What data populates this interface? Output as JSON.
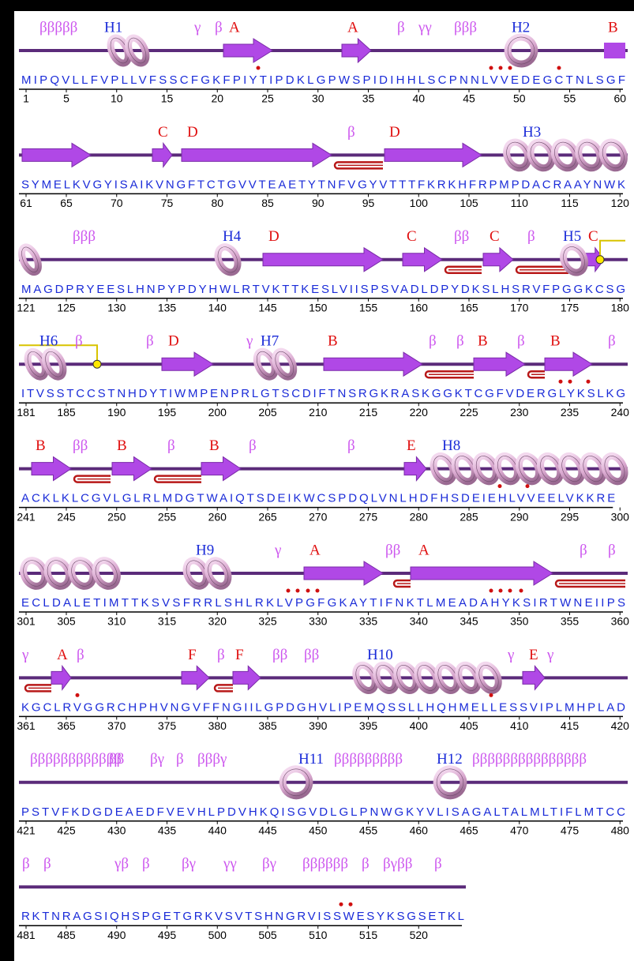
{
  "rows": [
    {
      "labels": [
        "βββββ",
        "H1",
        "γ",
        "β",
        "A",
        "A",
        "β",
        "γγ",
        "βββ",
        "H2",
        "B"
      ],
      "sequence": "MIPQVLLFVPLLVFSSCFGKFPIYTIPDKLGPWSPIDIHHLSCPNNLVVEDEGCTNLSGF",
      "ticks": [
        1,
        5,
        10,
        15,
        20,
        25,
        30,
        35,
        40,
        45,
        50,
        55,
        60
      ]
    },
    {
      "labels": [
        "C",
        "D",
        "β",
        "D",
        "H3"
      ],
      "sequence": "SYMELKVGYISAIKVNGFTCTGVVTEAETYTNFVGYVTTTFKRKHFRPMPDACRAAYNWK",
      "ticks": [
        61,
        65,
        70,
        75,
        80,
        85,
        90,
        95,
        100,
        105,
        110,
        115,
        120
      ]
    },
    {
      "labels": [
        "βββ",
        "H4",
        "D",
        "C",
        "ββ",
        "C",
        "β",
        "H5",
        "C"
      ],
      "sequence": "MAGDPRYEESLHNPYPDYHWLRTVKTTKESLVIISPSVADLDPYDKSLHSRVFPGGKCSG",
      "ticks": [
        121,
        125,
        130,
        135,
        140,
        145,
        150,
        155,
        160,
        165,
        170,
        175,
        180
      ]
    },
    {
      "labels": [
        "H6",
        "β",
        "β",
        "D",
        "γ",
        "H7",
        "B",
        "β",
        "β",
        "B",
        "β",
        "B",
        "β"
      ],
      "sequence": "ITVSSTCCSTNHDYTIWMPENPRLGTSCDIFTNSRGKRASKGGKTCGFVDERGLYKSLKG",
      "ticks": [
        181,
        185,
        190,
        195,
        200,
        205,
        210,
        215,
        220,
        225,
        230,
        235,
        240
      ]
    },
    {
      "labels": [
        "B",
        "ββ",
        "B",
        "β",
        "B",
        "β",
        "β",
        "E",
        "H8"
      ],
      "sequence": "ACKLKLCGVLGLRLMDGTWAIQTSDEIKWCSPDQLVNLHDFHSDEIEHLVVEELVKKRE",
      "ticks": [
        241,
        245,
        250,
        255,
        260,
        265,
        270,
        275,
        280,
        285,
        290,
        295,
        300
      ]
    },
    {
      "labels": [
        "H9",
        "γ",
        "A",
        "ββ",
        "A",
        "β",
        "β"
      ],
      "sequence": "ECLDALETIMTTKSVSFRRLSHLRKLVPGFGKAYTIFNKTLMEADAHYKSIRTWNEIIPS",
      "ticks": [
        301,
        305,
        310,
        315,
        320,
        325,
        330,
        335,
        340,
        345,
        350,
        355,
        360
      ]
    },
    {
      "labels": [
        "γ",
        "A",
        "β",
        "F",
        "β",
        "F",
        "ββ",
        "ββ",
        "H10",
        "γ",
        "E",
        "γ"
      ],
      "sequence": "KGCLRVGGRCHPHVNGVFFNGIILGPDGHVLIPEMQSSLLHQHMELLESSVIPLMHPLAD",
      "ticks": [
        361,
        365,
        370,
        375,
        380,
        385,
        390,
        395,
        400,
        405,
        410,
        415,
        420
      ]
    },
    {
      "labels": [
        "ββββββββββββ",
        "ββ",
        "βγ",
        "β",
        "βββγ",
        "H11",
        "βββββββββ",
        "H12",
        "βββββββββββββββ"
      ],
      "sequence": "PSTVFKDGDEAEDFVEVHLPDVHKQISGVDLGLPNWGKYVLISAGALTALMLTIFLMTCC",
      "ticks": [
        421,
        425,
        430,
        435,
        440,
        445,
        450,
        455,
        460,
        465,
        470,
        475,
        480
      ]
    },
    {
      "labels": [
        "β",
        "β",
        "γβ",
        "β",
        "βγ",
        "γγ",
        "βγ",
        "ββββββ",
        "β",
        "βγββ",
        "β"
      ],
      "sequence": "RKTNRAGSIQHSPGETGRKVSVTSHNGRVISSWESYKSGSETKL",
      "ticks": [
        481,
        485,
        490,
        495,
        500,
        505,
        510,
        515,
        520
      ]
    }
  ]
}
